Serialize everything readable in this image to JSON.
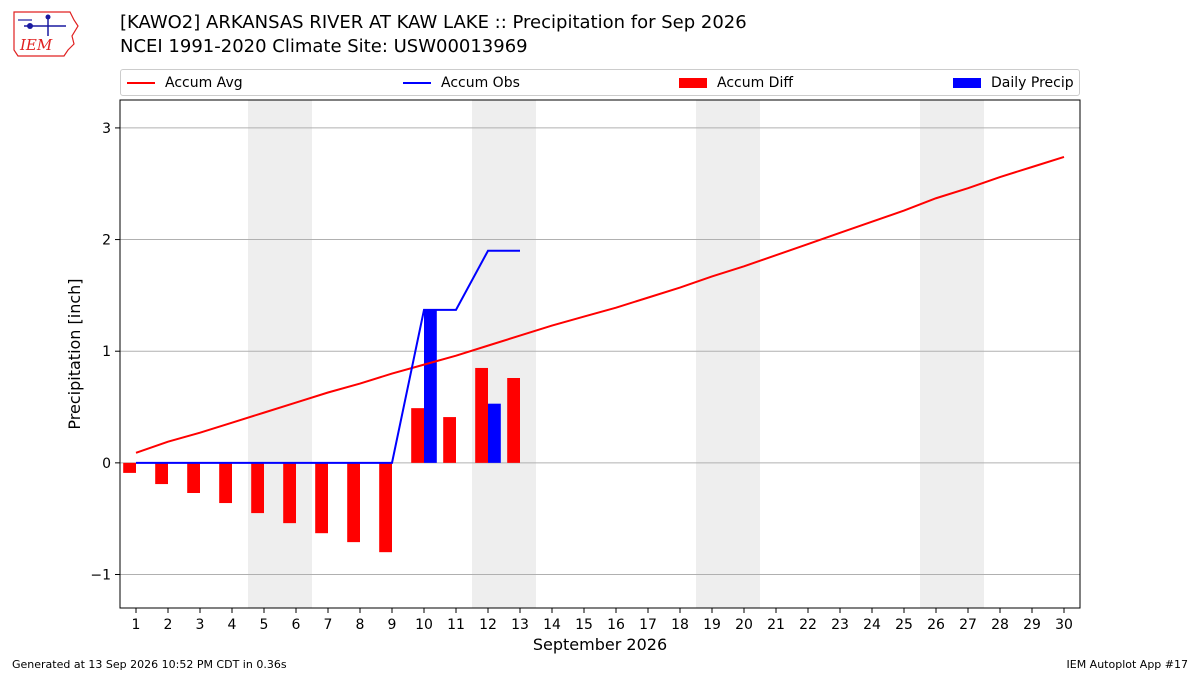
{
  "logo_text": "IEM",
  "footer": {
    "generated": "Generated at 13 Sep 2026 10:52 PM CDT in 0.36s",
    "app": "IEM Autoplot App #17"
  },
  "colors": {
    "avg": "#ff0000",
    "obs": "#0000ff",
    "diff": "#ff0000",
    "daily": "#0000ff",
    "weekend_shade": "#eeeeee",
    "grid": "#b0b0b0"
  },
  "chart_data": {
    "type": "bar",
    "title": "[KAWO2] ARKANSAS RIVER  AT KAW LAKE :: Precipitation for Sep 2026",
    "subtitle": "NCEI 1991-2020 Climate Site: USW00013969",
    "xlabel": "September 2026",
    "ylabel": "Precipitation [inch]",
    "xlim": [
      0.5,
      30.5
    ],
    "ylim": [
      -1.3,
      3.25
    ],
    "y_ticks": [
      -1,
      0,
      1,
      2,
      3
    ],
    "y_tick_labels": [
      "−1",
      "0",
      "1",
      "2",
      "3"
    ],
    "x_ticks": [
      1,
      2,
      3,
      4,
      5,
      6,
      7,
      8,
      9,
      10,
      11,
      12,
      13,
      14,
      15,
      16,
      17,
      18,
      19,
      20,
      21,
      22,
      23,
      24,
      25,
      26,
      27,
      28,
      29,
      30
    ],
    "grid": "horizontal",
    "legend_position": "top",
    "weekend_spans": [
      [
        4.5,
        6.5
      ],
      [
        11.5,
        13.5
      ],
      [
        18.5,
        20.5
      ],
      [
        25.5,
        27.5
      ]
    ],
    "series": [
      {
        "name": "Accum Avg",
        "kind": "line",
        "x": [
          1,
          2,
          3,
          4,
          5,
          6,
          7,
          8,
          9,
          10,
          11,
          12,
          13,
          14,
          15,
          16,
          17,
          18,
          19,
          20,
          21,
          22,
          23,
          24,
          25,
          26,
          27,
          28,
          29,
          30
        ],
        "values": [
          0.09,
          0.19,
          0.27,
          0.36,
          0.45,
          0.54,
          0.63,
          0.71,
          0.8,
          0.88,
          0.96,
          1.05,
          1.14,
          1.23,
          1.31,
          1.39,
          1.48,
          1.57,
          1.67,
          1.76,
          1.86,
          1.96,
          2.06,
          2.16,
          2.26,
          2.37,
          2.46,
          2.56,
          2.65,
          2.74
        ]
      },
      {
        "name": "Accum Obs",
        "kind": "line",
        "x": [
          1,
          2,
          3,
          4,
          5,
          6,
          7,
          8,
          9,
          10,
          11,
          12,
          13
        ],
        "values": [
          0,
          0,
          0,
          0,
          0,
          0,
          0,
          0,
          0,
          1.37,
          1.37,
          1.9,
          1.9
        ]
      },
      {
        "name": "Accum Diff",
        "kind": "bar",
        "x": [
          1,
          2,
          3,
          4,
          5,
          6,
          7,
          8,
          9,
          10,
          11,
          12,
          13
        ],
        "values": [
          -0.09,
          -0.19,
          -0.27,
          -0.36,
          -0.45,
          -0.54,
          -0.63,
          -0.71,
          -0.8,
          0.49,
          0.41,
          0.85,
          0.76
        ]
      },
      {
        "name": "Daily Precip",
        "kind": "bar",
        "x": [
          10,
          12
        ],
        "values": [
          1.37,
          0.53
        ]
      }
    ]
  }
}
